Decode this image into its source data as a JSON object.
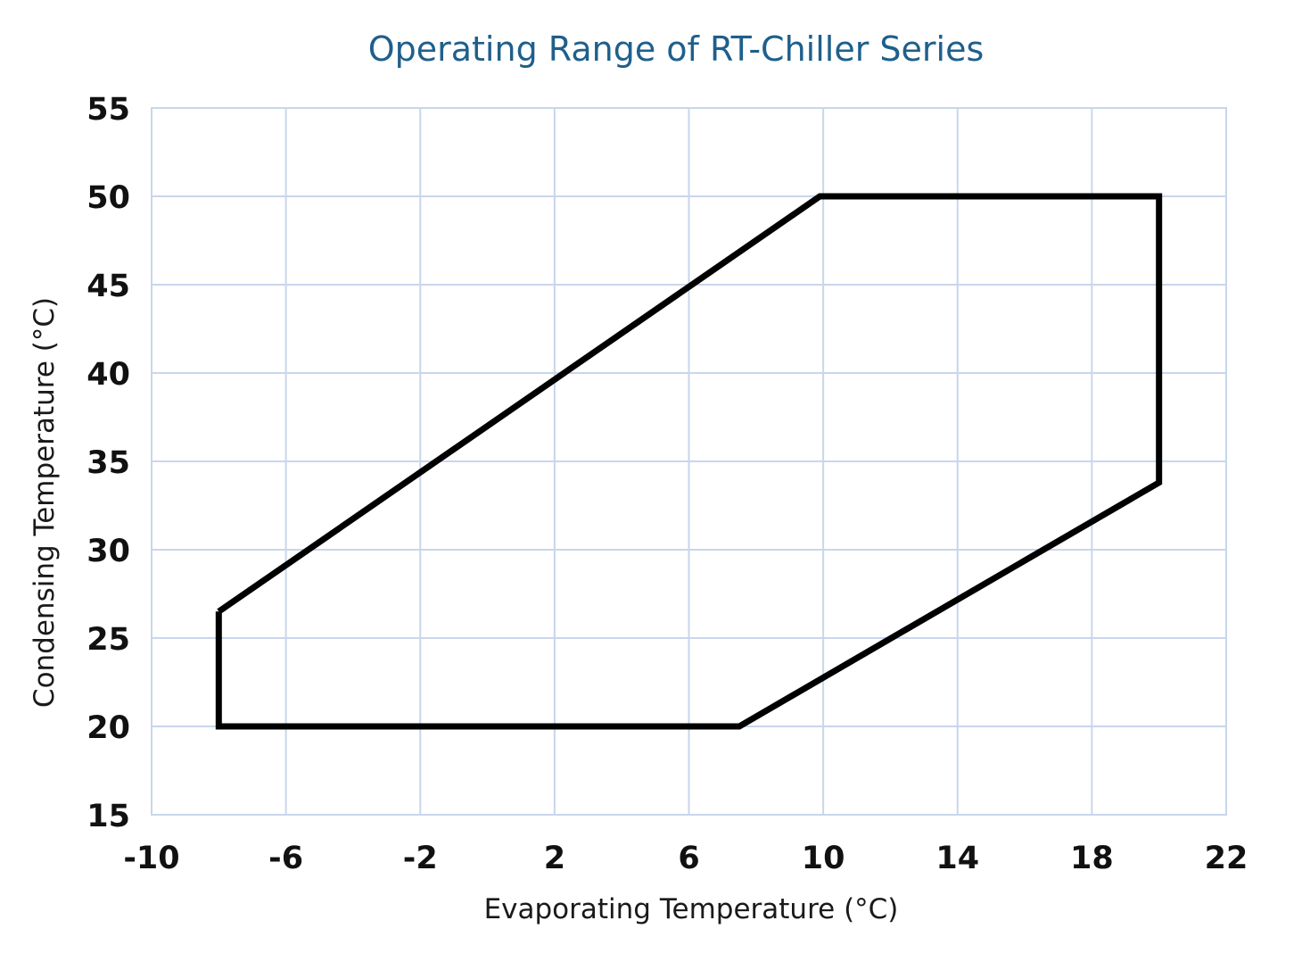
{
  "chart_data": {
    "type": "line",
    "title": "Operating Range of RT-Chiller Series",
    "xlabel": "Evaporating Temperature (°C)",
    "ylabel": "Condensing Temperature (°C)",
    "xlim": [
      -10,
      22
    ],
    "ylim": [
      15,
      55
    ],
    "xticks": [
      -10,
      -6,
      -2,
      2,
      6,
      10,
      14,
      18,
      22
    ],
    "yticks": [
      15,
      20,
      25,
      30,
      35,
      40,
      45,
      50,
      55
    ],
    "xtick_labels": [
      "-10",
      "-6",
      "-2",
      "2",
      "6",
      "10",
      "14",
      "18",
      "22"
    ],
    "ytick_labels": [
      "15",
      "20",
      "25",
      "30",
      "35",
      "40",
      "45",
      "50",
      "55"
    ],
    "grid": true,
    "legend": "none",
    "series": [
      {
        "x": [
          -8,
          9.9,
          20,
          20,
          7.5,
          -8,
          -8
        ],
        "y": [
          26.5,
          50,
          50,
          33.8,
          20,
          20,
          26.5
        ],
        "color": "#000000"
      }
    ]
  },
  "colors": {
    "title": "#1f5f8b",
    "grid": "#c9d6ec",
    "outline": "#000000"
  }
}
